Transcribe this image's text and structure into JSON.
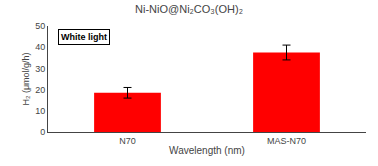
{
  "chart_data": {
    "type": "bar",
    "title": "Ni-NiO@Ni₂CO₃(OH)₂",
    "categories": [
      "N70",
      "MAS-N70"
    ],
    "values": [
      18.5,
      37.5
    ],
    "errors": [
      2.5,
      3.5
    ],
    "color": "#ff0000",
    "xlabel": "Wavelength (nm)",
    "ylabel": "H₂ (μmol/g/h)",
    "annotation": "White light",
    "ylim": [
      0,
      50
    ],
    "yticks": [
      0,
      10,
      20,
      30,
      40,
      50
    ],
    "grid": false
  }
}
